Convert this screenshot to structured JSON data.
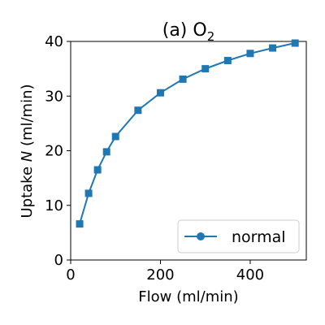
{
  "chart_data": {
    "type": "line",
    "title": "(a) O",
    "title_subscript": "2",
    "xlabel": "Flow (ml/min)",
    "ylabel_prefix": "Uptake ",
    "ylabel_var": "N",
    "ylabel_suffix": " (ml/min)",
    "xlim": [
      0,
      525
    ],
    "ylim": [
      0,
      40
    ],
    "xticks": [
      0,
      200,
      400
    ],
    "yticks": [
      0,
      10,
      20,
      30,
      40
    ],
    "grid": false,
    "legend_position": "lower-right",
    "series": [
      {
        "name": "normal",
        "color": "#1f77b4",
        "marker": "square",
        "legend_marker": "circle",
        "x": [
          20,
          40,
          60,
          80,
          100,
          150,
          200,
          250,
          300,
          350,
          400,
          450,
          500
        ],
        "y": [
          6.6,
          12.2,
          16.5,
          19.8,
          22.6,
          27.4,
          30.6,
          33.1,
          35.0,
          36.5,
          37.8,
          38.8,
          39.7
        ]
      }
    ]
  }
}
